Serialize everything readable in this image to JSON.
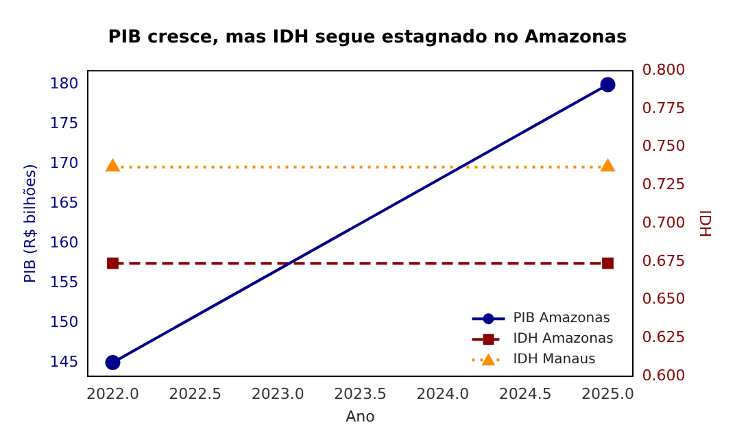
{
  "chart_data": {
    "type": "line",
    "title": "PIB cresce, mas IDH segue estagnado no Amazonas",
    "xlabel": "Ano",
    "ylabel": "PIB (R$ bilhões)",
    "y2label": "IDH",
    "x": [
      2022,
      2025
    ],
    "series": [
      {
        "name": "PIB Amazonas",
        "color": "#00008b",
        "values": [
          145,
          180
        ],
        "marker": "circle",
        "line_style": "solid"
      },
      {
        "name": "IDH Amazonas",
        "color": "#8b0000",
        "values": [
          0.674,
          0.674
        ],
        "axis": "y2",
        "marker": "square",
        "line_style": "dashed"
      },
      {
        "name": "IDH Manaus",
        "color": "#ff8c00",
        "values": [
          0.737,
          0.737
        ],
        "axis": "y2",
        "marker": "triangle",
        "line_style": "dotted"
      }
    ],
    "xlim": [
      2021.85,
      2025.15
    ],
    "xticks": [
      {
        "value": 2022,
        "label": "2022.0"
      },
      {
        "value": 2022.5,
        "label": "2022.5"
      },
      {
        "value": 2023,
        "label": "2023.0"
      },
      {
        "value": 2023.5,
        "label": "2023.5"
      },
      {
        "value": 2024,
        "label": "2024.0"
      },
      {
        "value": 2024.5,
        "label": "2024.5"
      },
      {
        "value": 2025,
        "label": "2025.0"
      }
    ],
    "ylim": [
      143.25,
      181.75
    ],
    "yticks": [
      145,
      150,
      155,
      160,
      165,
      170,
      175,
      180
    ],
    "y2lim": [
      0.6,
      0.8
    ],
    "y2ticks": [
      {
        "value": 0.6,
        "label": "0.600"
      },
      {
        "value": 0.625,
        "label": "0.625"
      },
      {
        "value": 0.65,
        "label": "0.650"
      },
      {
        "value": 0.675,
        "label": "0.675"
      },
      {
        "value": 0.7,
        "label": "0.700"
      },
      {
        "value": 0.725,
        "label": "0.725"
      },
      {
        "value": 0.75,
        "label": "0.750"
      },
      {
        "value": 0.775,
        "label": "0.775"
      },
      {
        "value": 0.8,
        "label": "0.800"
      }
    ],
    "grid": false,
    "legend": "bottom right"
  }
}
